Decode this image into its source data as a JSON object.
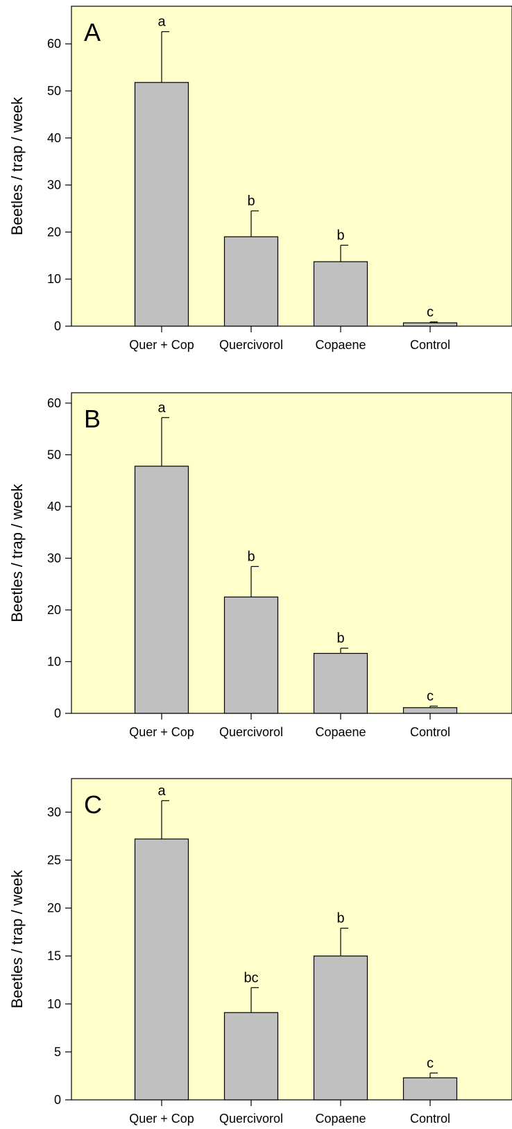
{
  "chart_data": [
    {
      "type": "bar",
      "panel_label": "A",
      "categories": [
        "Quer + Cop",
        "Quercivorol",
        "Copaene",
        "Control"
      ],
      "values": [
        51.8,
        19.0,
        13.7,
        0.7
      ],
      "errors": [
        10.8,
        5.5,
        3.5,
        0.2
      ],
      "significance": [
        "a",
        "b",
        "b",
        "c"
      ],
      "ylabel": "Beetles / trap / week",
      "ylim": [
        0,
        68
      ],
      "yticks": [
        0,
        10,
        20,
        30,
        40,
        50,
        60
      ],
      "background_color": "#ffffcc",
      "bar_color": "#c0c0c0",
      "grid": false
    },
    {
      "type": "bar",
      "panel_label": "B",
      "categories": [
        "Quer + Cop",
        "Quercivorol",
        "Copaene",
        "Control"
      ],
      "values": [
        47.8,
        22.5,
        11.6,
        1.1
      ],
      "errors": [
        9.4,
        5.9,
        1.0,
        0.3
      ],
      "significance": [
        "a",
        "b",
        "b",
        "c"
      ],
      "ylabel": "Beetles / trap / week",
      "ylim": [
        0,
        62
      ],
      "yticks": [
        0,
        10,
        20,
        30,
        40,
        50,
        60
      ],
      "background_color": "#ffffcc",
      "bar_color": "#c0c0c0",
      "grid": false
    },
    {
      "type": "bar",
      "panel_label": "C",
      "categories": [
        "Quer + Cop",
        "Quercivorol",
        "Copaene",
        "Control"
      ],
      "values": [
        27.2,
        9.1,
        15.0,
        2.3
      ],
      "errors": [
        4.0,
        2.6,
        2.9,
        0.5
      ],
      "significance": [
        "a",
        "bc",
        "b",
        "c"
      ],
      "ylabel": "Beetles / trap / week",
      "ylim": [
        0,
        33.5
      ],
      "yticks": [
        0,
        5,
        10,
        15,
        20,
        25,
        30
      ],
      "background_color": "#ffffcc",
      "bar_color": "#c0c0c0",
      "grid": false
    }
  ]
}
